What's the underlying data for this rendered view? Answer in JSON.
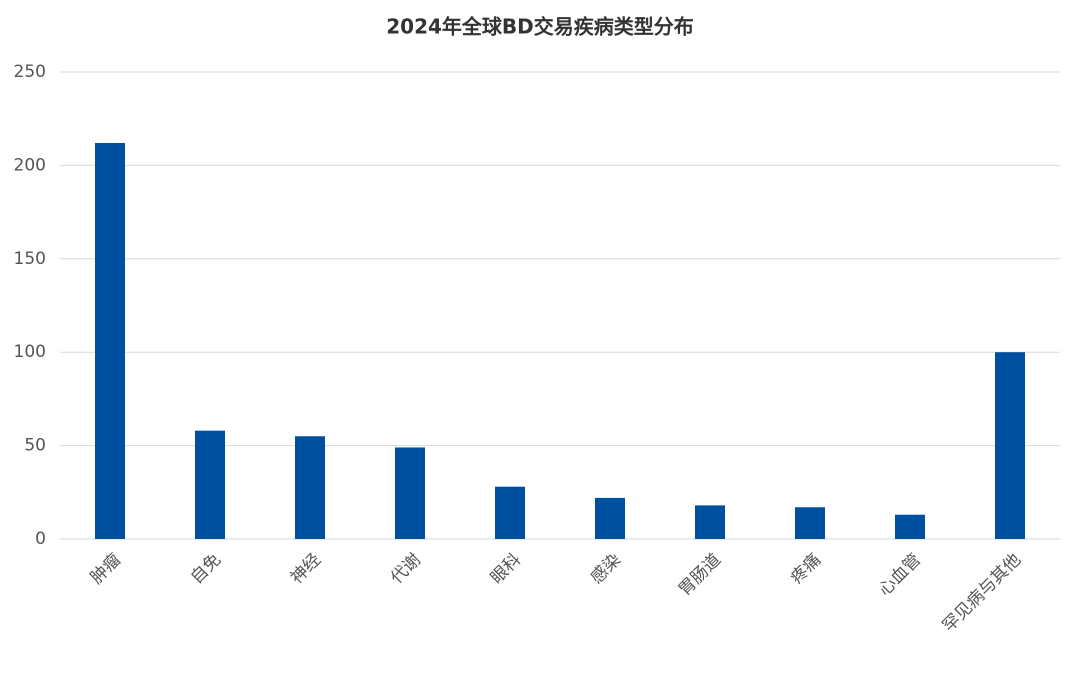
{
  "chart_data": {
    "type": "bar",
    "title": "2024年全球BD交易疾病类型分布",
    "categories": [
      "肿瘤",
      "自免",
      "神经",
      "代谢",
      "眼科",
      "感染",
      "胃肠道",
      "疼痛",
      "心血管",
      "罕见病与其他"
    ],
    "values": [
      212,
      58,
      55,
      49,
      28,
      22,
      18,
      17,
      13,
      100
    ],
    "color": "#0050a0",
    "ylim": [
      0,
      250
    ],
    "yticks": [
      0,
      50,
      100,
      150,
      200,
      250
    ],
    "grid": true
  }
}
